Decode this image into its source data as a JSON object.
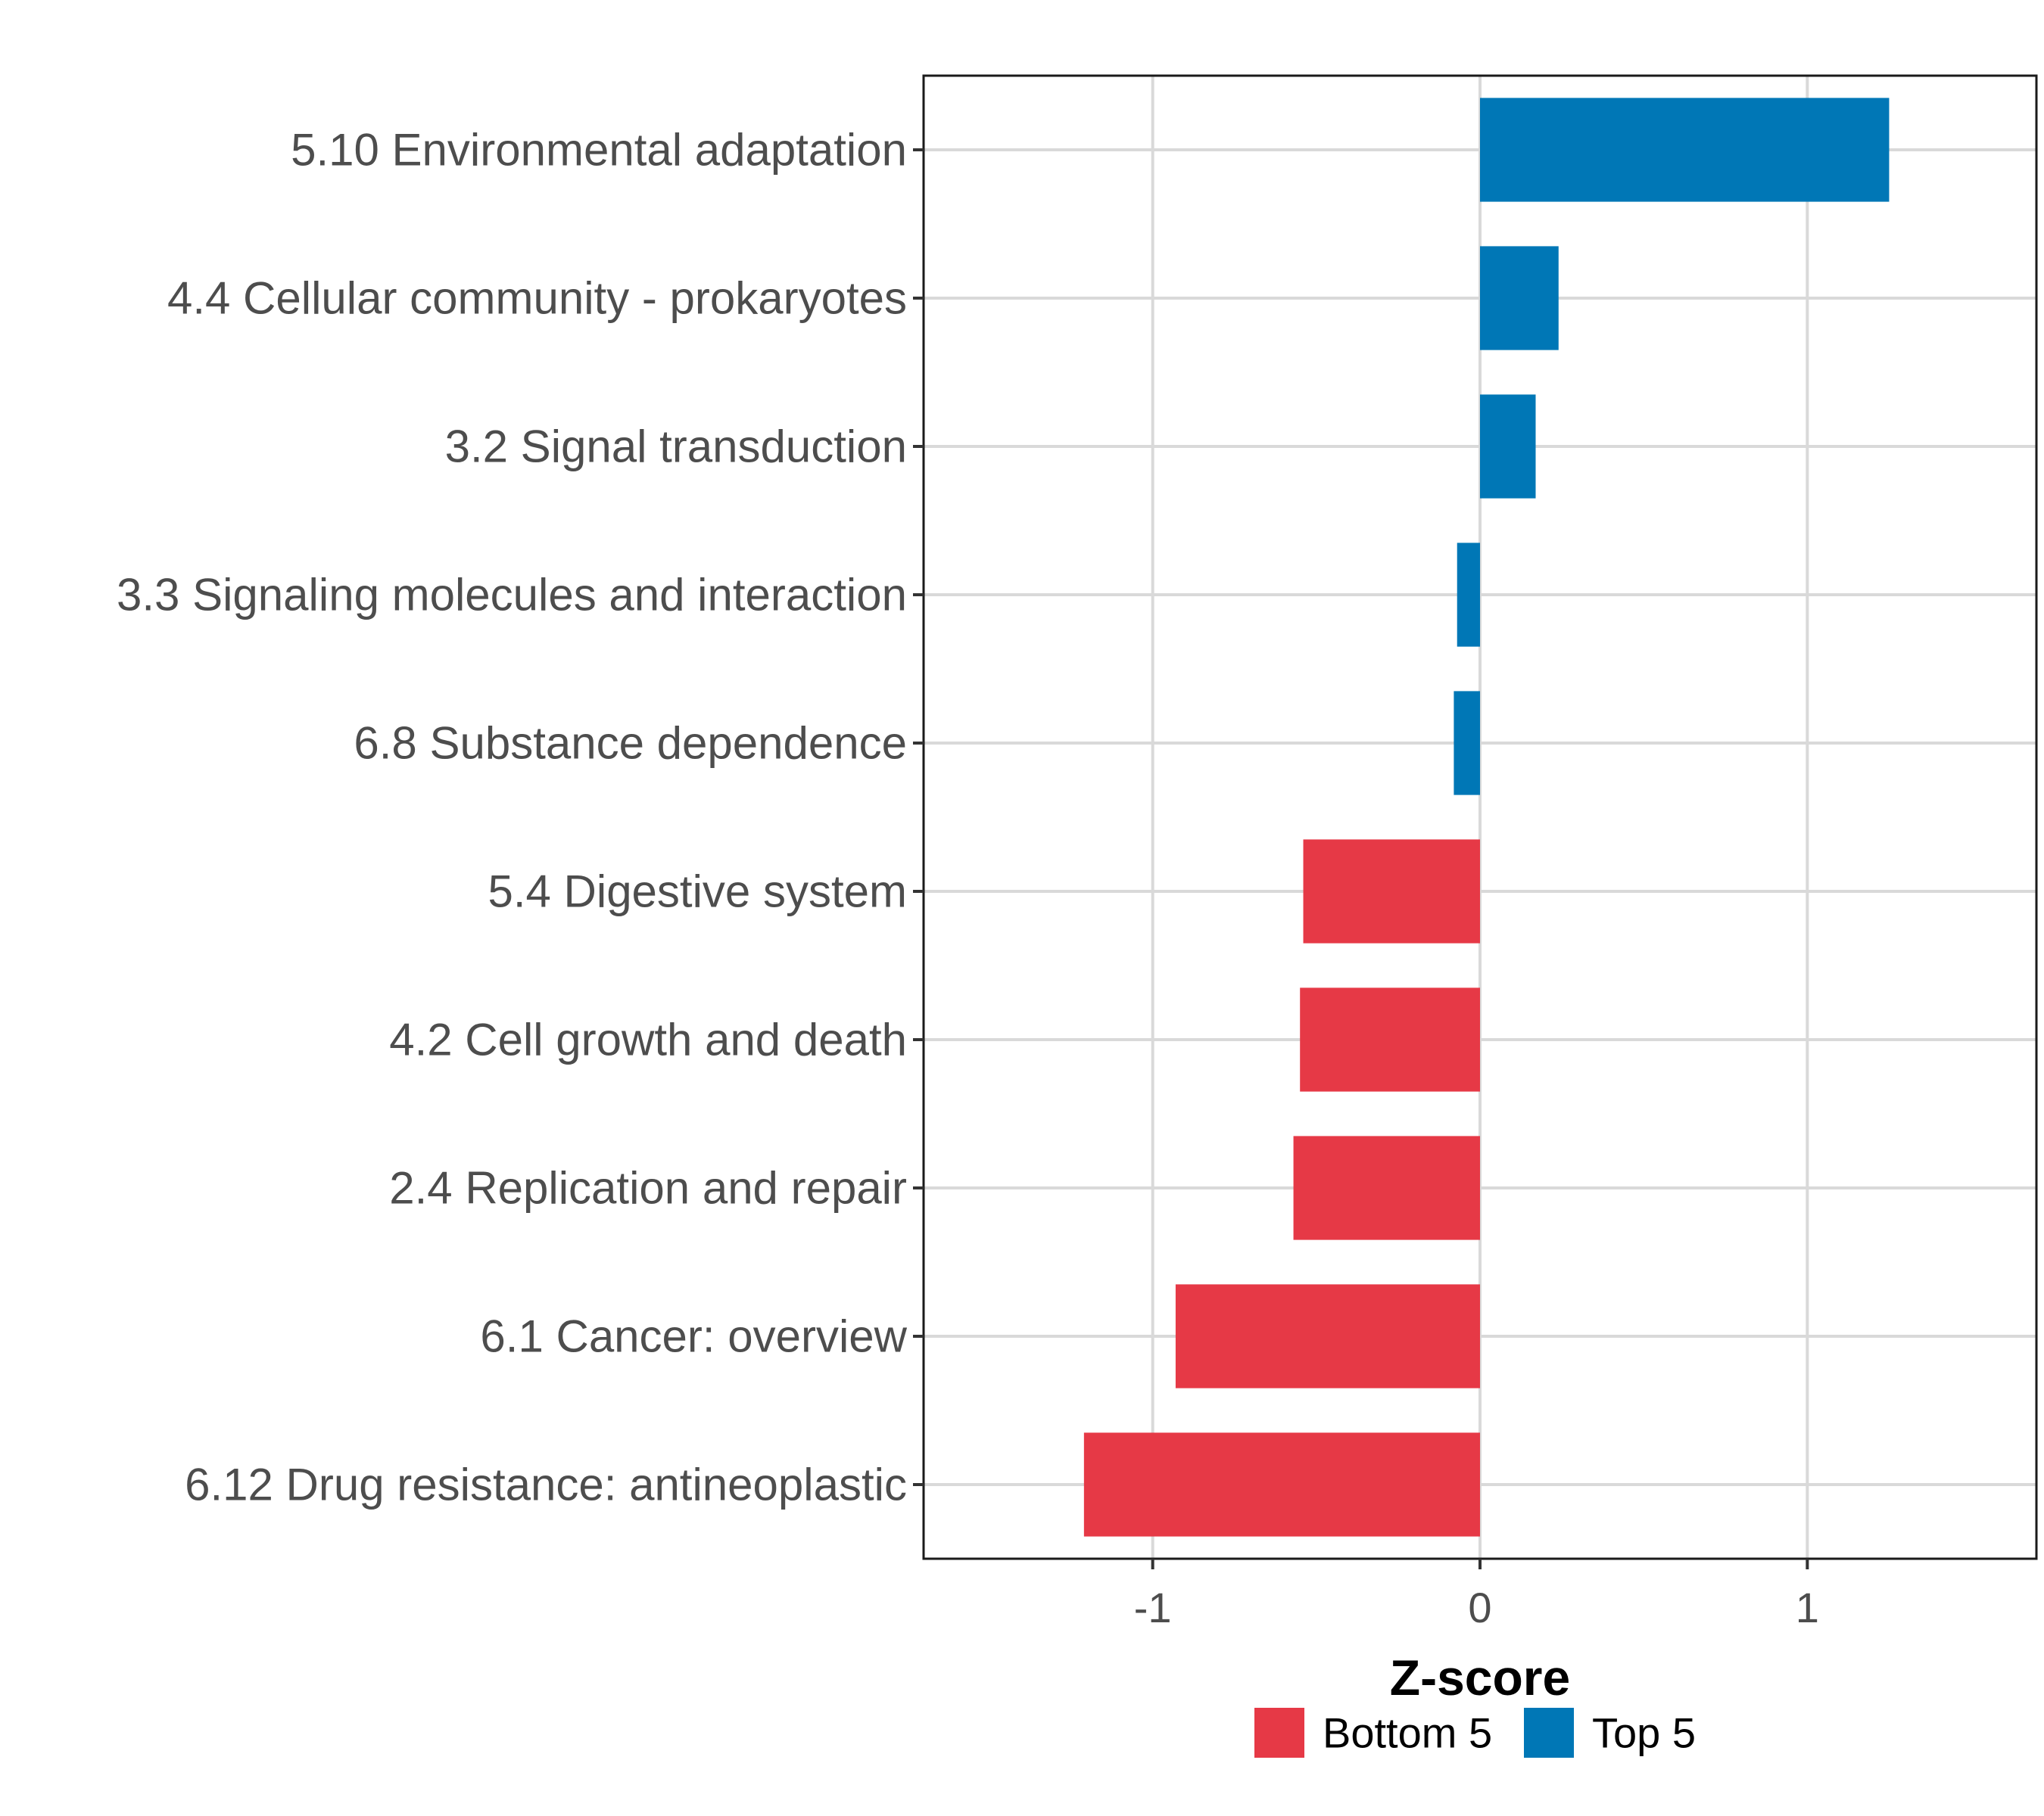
{
  "chart_data": {
    "type": "bar",
    "orientation": "horizontal",
    "categories": [
      "5.10 Environmental adaptation",
      "4.4 Cellular community - prokaryotes",
      "3.2 Signal transduction",
      "3.3 Signaling molecules and interaction",
      "6.8 Substance dependence",
      "5.4 Digestive system",
      "4.2 Cell growth and death",
      "2.4 Replication and repair",
      "6.1 Cancer: overview",
      "6.12 Drug resistance: antineoplastic"
    ],
    "values": [
      1.25,
      0.24,
      0.17,
      -0.07,
      -0.08,
      -0.54,
      -0.55,
      -0.57,
      -0.93,
      -1.21
    ],
    "groups": [
      "Top 5",
      "Top 5",
      "Top 5",
      "Top 5",
      "Top 5",
      "Bottom 5",
      "Bottom 5",
      "Bottom 5",
      "Bottom 5",
      "Bottom 5"
    ],
    "xlabel": "Z-score",
    "ylabel": "",
    "xlim": [
      -1.7,
      1.7
    ],
    "xticks": [
      -1,
      0,
      1
    ],
    "xtick_labels": [
      "-1",
      "0",
      "1"
    ],
    "grid": true,
    "legend": {
      "position": "bottom",
      "entries": [
        {
          "label": "Bottom 5",
          "color": "#E63946"
        },
        {
          "label": "Top 5",
          "color": "#0077B6"
        }
      ]
    },
    "colors": {
      "Bottom 5": "#E63946",
      "Top 5": "#0077B6"
    }
  }
}
